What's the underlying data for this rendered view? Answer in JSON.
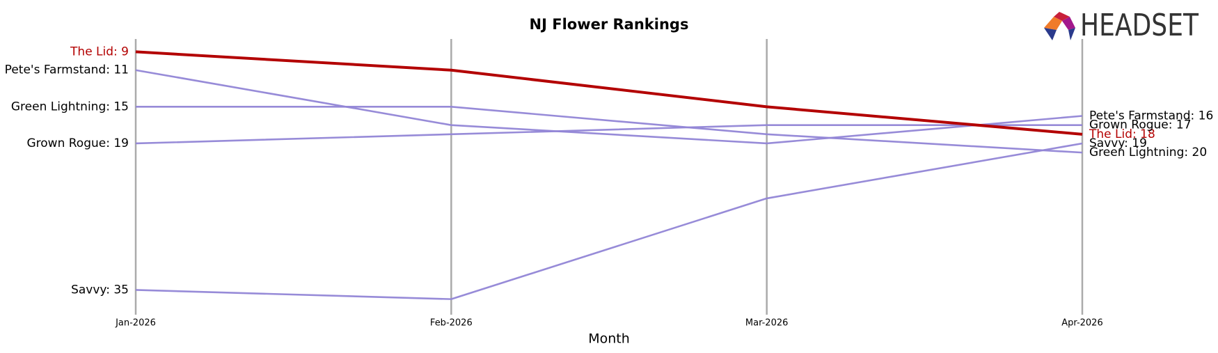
{
  "chart_data": {
    "type": "line",
    "title": "NJ Flower Rankings",
    "x_label": "Month",
    "logo": "HEADSET",
    "categories": [
      "Jan-2026",
      "Feb-2026",
      "Mar-2026",
      "Apr-2026"
    ],
    "ylim": [
      37.7,
      7.6
    ],
    "inverted": true,
    "series": [
      {
        "name": "The Lid",
        "color": "#b30000",
        "values": [
          9,
          11,
          15,
          18
        ],
        "value_labels": [
          "The Lid: 9",
          null,
          null,
          "The Lid: 18"
        ]
      },
      {
        "name": "Pete's Farmstand",
        "color": "#9185d6",
        "values": [
          11,
          17,
          19,
          16
        ],
        "value_labels": [
          "Pete's Farmstand: 11",
          null,
          null,
          "Pete's Farmstand: 16"
        ]
      },
      {
        "name": "Green Lightning",
        "color": "#9185d6",
        "values": [
          15,
          15,
          18,
          20
        ],
        "value_labels": [
          "Green Lightning: 15",
          null,
          null,
          "Green Lightning: 20"
        ]
      },
      {
        "name": "Grown Rogue",
        "color": "#9185d6",
        "values": [
          19,
          18,
          17,
          17
        ],
        "value_labels": [
          "Grown Rogue: 19",
          null,
          null,
          "Grown Rogue: 17"
        ]
      },
      {
        "name": "Savvy",
        "color": "#9185d6",
        "values": [
          35,
          36,
          25,
          19
        ],
        "value_labels": [
          "Savvy: 35",
          null,
          null,
          "Savvy: 19"
        ]
      }
    ]
  }
}
